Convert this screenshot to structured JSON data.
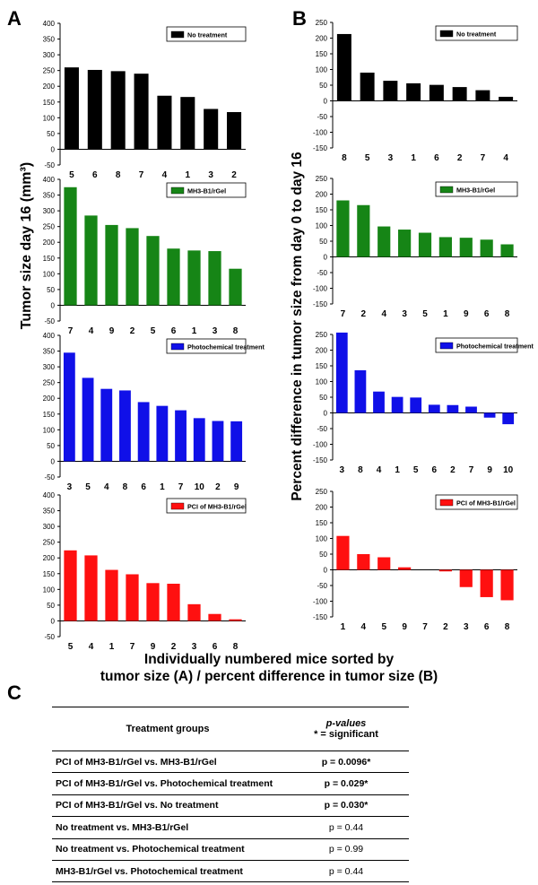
{
  "panel_labels": {
    "a": "A",
    "b": "B",
    "c": "C"
  },
  "y_label_a": "Tumor size day 16 (mm³)",
  "y_label_b": "Percent difference in tumor size from day 0 to day 16",
  "x_caption": {
    "line1": "Individually numbered mice sorted by",
    "line2": "tumor size (A) / percent difference in tumor size (B)"
  },
  "table": {
    "header_group": "Treatment groups",
    "header_pvalue_line1": "p-values",
    "header_pvalue_line2": "* = significant",
    "rows": [
      {
        "group": "PCI of MH3-B1/rGel vs. MH3-B1/rGel",
        "p": "p = 0.0096*",
        "sig": true
      },
      {
        "group": "PCI of MH3-B1/rGel vs. Photochemical treatment",
        "p": "p = 0.029*",
        "sig": true
      },
      {
        "group": "PCI of MH3-B1/rGel vs. No treatment",
        "p": "p = 0.030*",
        "sig": true
      },
      {
        "group": "No treatment vs. MH3-B1/rGel",
        "p": "p = 0.44",
        "sig": false
      },
      {
        "group": "No treatment vs. Photochemical treatment",
        "p": "p = 0.99",
        "sig": false
      },
      {
        "group": "MH3-B1/rGel vs. Photochemical treatment",
        "p": "p = 0.44",
        "sig": false
      }
    ]
  },
  "chart_data": [
    {
      "type": "bar",
      "panel": "A",
      "legend": "No treatment",
      "color": "#000000",
      "categories": [
        "5",
        "6",
        "8",
        "7",
        "4",
        "1",
        "3",
        "2"
      ],
      "values": [
        260,
        252,
        248,
        240,
        170,
        166,
        128,
        118
      ],
      "ylim": [
        -50,
        400
      ],
      "yticks": [
        -50,
        0,
        50,
        100,
        150,
        200,
        250,
        300,
        350,
        400
      ],
      "ylabel": "Tumor size day 16 (mm³)"
    },
    {
      "type": "bar",
      "panel": "A",
      "legend": "MH3-B1/rGel",
      "color": "#168516",
      "categories": [
        "7",
        "4",
        "9",
        "2",
        "5",
        "6",
        "1",
        "3",
        "8"
      ],
      "values": [
        375,
        285,
        255,
        245,
        220,
        180,
        174,
        172,
        116
      ],
      "ylim": [
        -50,
        400
      ],
      "yticks": [
        -50,
        0,
        50,
        100,
        150,
        200,
        250,
        300,
        350,
        400
      ],
      "ylabel": "Tumor size day 16 (mm³)"
    },
    {
      "type": "bar",
      "panel": "A",
      "legend": "Photochemical treatment",
      "color": "#1010e8",
      "categories": [
        "3",
        "5",
        "4",
        "8",
        "6",
        "1",
        "7",
        "10",
        "2",
        "9"
      ],
      "values": [
        345,
        265,
        230,
        225,
        188,
        176,
        162,
        137,
        128,
        127
      ],
      "ylim": [
        -50,
        400
      ],
      "yticks": [
        -50,
        0,
        50,
        100,
        150,
        200,
        250,
        300,
        350,
        400
      ],
      "ylabel": "Tumor size day 16 (mm³)"
    },
    {
      "type": "bar",
      "panel": "A",
      "legend": "PCI of MH3-B1/rGel",
      "color": "#ff1010",
      "categories": [
        "5",
        "4",
        "1",
        "7",
        "9",
        "2",
        "3",
        "6",
        "8"
      ],
      "values": [
        224,
        208,
        162,
        148,
        120,
        118,
        53,
        22,
        5
      ],
      "ylim": [
        -50,
        400
      ],
      "yticks": [
        -50,
        0,
        50,
        100,
        150,
        200,
        250,
        300,
        350,
        400
      ],
      "ylabel": "Tumor size day 16 (mm³)"
    },
    {
      "type": "bar",
      "panel": "B",
      "legend": "No treatment",
      "color": "#000000",
      "categories": [
        "8",
        "5",
        "3",
        "1",
        "6",
        "2",
        "7",
        "4"
      ],
      "values": [
        213,
        90,
        64,
        56,
        51,
        44,
        34,
        13
      ],
      "ylim": [
        -150,
        250
      ],
      "yticks": [
        -150,
        -100,
        -50,
        0,
        50,
        100,
        150,
        200,
        250
      ],
      "ylabel": "Percent difference in tumor size from day 0 to day 16"
    },
    {
      "type": "bar",
      "panel": "B",
      "legend": "MH3-B1/rGel",
      "color": "#168516",
      "categories": [
        "7",
        "2",
        "4",
        "3",
        "5",
        "1",
        "9",
        "6",
        "8"
      ],
      "values": [
        180,
        165,
        97,
        87,
        77,
        63,
        61,
        55,
        40
      ],
      "ylim": [
        -150,
        250
      ],
      "yticks": [
        -150,
        -100,
        -50,
        0,
        50,
        100,
        150,
        200,
        250
      ],
      "ylabel": "Percent difference in tumor size from day 0 to day 16"
    },
    {
      "type": "bar",
      "panel": "B",
      "legend": "Photochemical treatment",
      "color": "#1010e8",
      "categories": [
        "3",
        "8",
        "4",
        "1",
        "5",
        "6",
        "2",
        "7",
        "9",
        "10"
      ],
      "values": [
        256,
        136,
        68,
        51,
        49,
        26,
        25,
        20,
        -15,
        -36
      ],
      "ylim": [
        -150,
        250
      ],
      "yticks": [
        -150,
        -100,
        -50,
        0,
        50,
        100,
        150,
        200,
        250
      ],
      "ylabel": "Percent difference in tumor size from day 0 to day 16"
    },
    {
      "type": "bar",
      "panel": "B",
      "legend": "PCI of MH3-B1/rGel",
      "color": "#ff1010",
      "categories": [
        "1",
        "4",
        "5",
        "9",
        "7",
        "2",
        "3",
        "6",
        "8"
      ],
      "values": [
        108,
        50,
        40,
        8,
        0,
        -5,
        -55,
        -87,
        -97
      ],
      "ylim": [
        -150,
        250
      ],
      "yticks": [
        -150,
        -100,
        -50,
        0,
        50,
        100,
        150,
        200,
        250
      ],
      "ylabel": "Percent difference in tumor size from day 0 to day 16"
    }
  ]
}
